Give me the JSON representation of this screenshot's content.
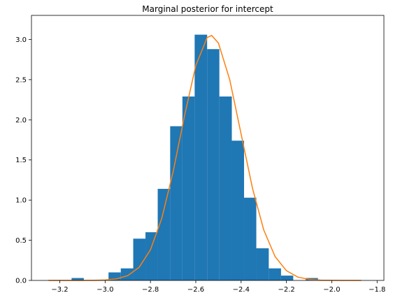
{
  "chart_data": {
    "type": "histogram",
    "title": "Marginal posterior for intercept",
    "bins": [
      -3.148,
      -3.094,
      -3.039,
      -2.985,
      -2.931,
      -2.876,
      -2.822,
      -2.768,
      -2.713,
      -2.659,
      -2.605,
      -2.55,
      -2.496,
      -2.441,
      -2.387,
      -2.333,
      -2.278,
      -2.224,
      -2.17,
      -2.115,
      -2.061
    ],
    "values": [
      0.03,
      0,
      0,
      0.1,
      0.15,
      0.52,
      0.6,
      1.14,
      1.92,
      2.29,
      3.06,
      2.88,
      2.29,
      1.74,
      1.03,
      0.4,
      0.15,
      0.06,
      0,
      0.03
    ],
    "color": "#1f77b4",
    "line": {
      "type": "line",
      "color": "#ff7f0e",
      "x": [
        -3.25,
        -3.2,
        -3.15,
        -3.1,
        -3.05,
        -3.0,
        -2.95,
        -2.9,
        -2.85,
        -2.8,
        -2.75,
        -2.7,
        -2.65,
        -2.6,
        -2.55,
        -2.53,
        -2.5,
        -2.45,
        -2.4,
        -2.35,
        -2.3,
        -2.25,
        -2.2,
        -2.15,
        -2.1,
        -2.05,
        -2.0,
        -1.95,
        -1.9,
        -1.87
      ],
      "values": [
        0,
        0,
        0.0001,
        0.0003,
        0.0013,
        0.0053,
        0.019,
        0.06,
        0.163,
        0.382,
        0.773,
        1.353,
        2.047,
        2.676,
        3.024,
        3.05,
        2.955,
        2.496,
        1.822,
        1.15,
        0.627,
        0.296,
        0.121,
        0.042,
        0.013,
        0.0034,
        0.0008,
        0.0001,
        0,
        0
      ]
    },
    "xlim": [
      -3.325,
      -1.77
    ],
    "ylim": [
      0,
      3.3
    ],
    "xticks": [
      {
        "value": -3.2,
        "label": "−3.2"
      },
      {
        "value": -3.0,
        "label": "−3.0"
      },
      {
        "value": -2.8,
        "label": "−2.8"
      },
      {
        "value": -2.6,
        "label": "−2.6"
      },
      {
        "value": -2.4,
        "label": "−2.4"
      },
      {
        "value": -2.2,
        "label": "−2.2"
      },
      {
        "value": -2.0,
        "label": "−2.0"
      },
      {
        "value": -1.8,
        "label": "−1.8"
      }
    ],
    "yticks": [
      {
        "value": 0,
        "label": "0.0"
      },
      0.5,
      {
        "value": 1,
        "label": "1.0"
      },
      1.5,
      {
        "value": 2,
        "label": "2.0"
      },
      2.5,
      {
        "value": 3,
        "label": "3.0"
      }
    ]
  }
}
